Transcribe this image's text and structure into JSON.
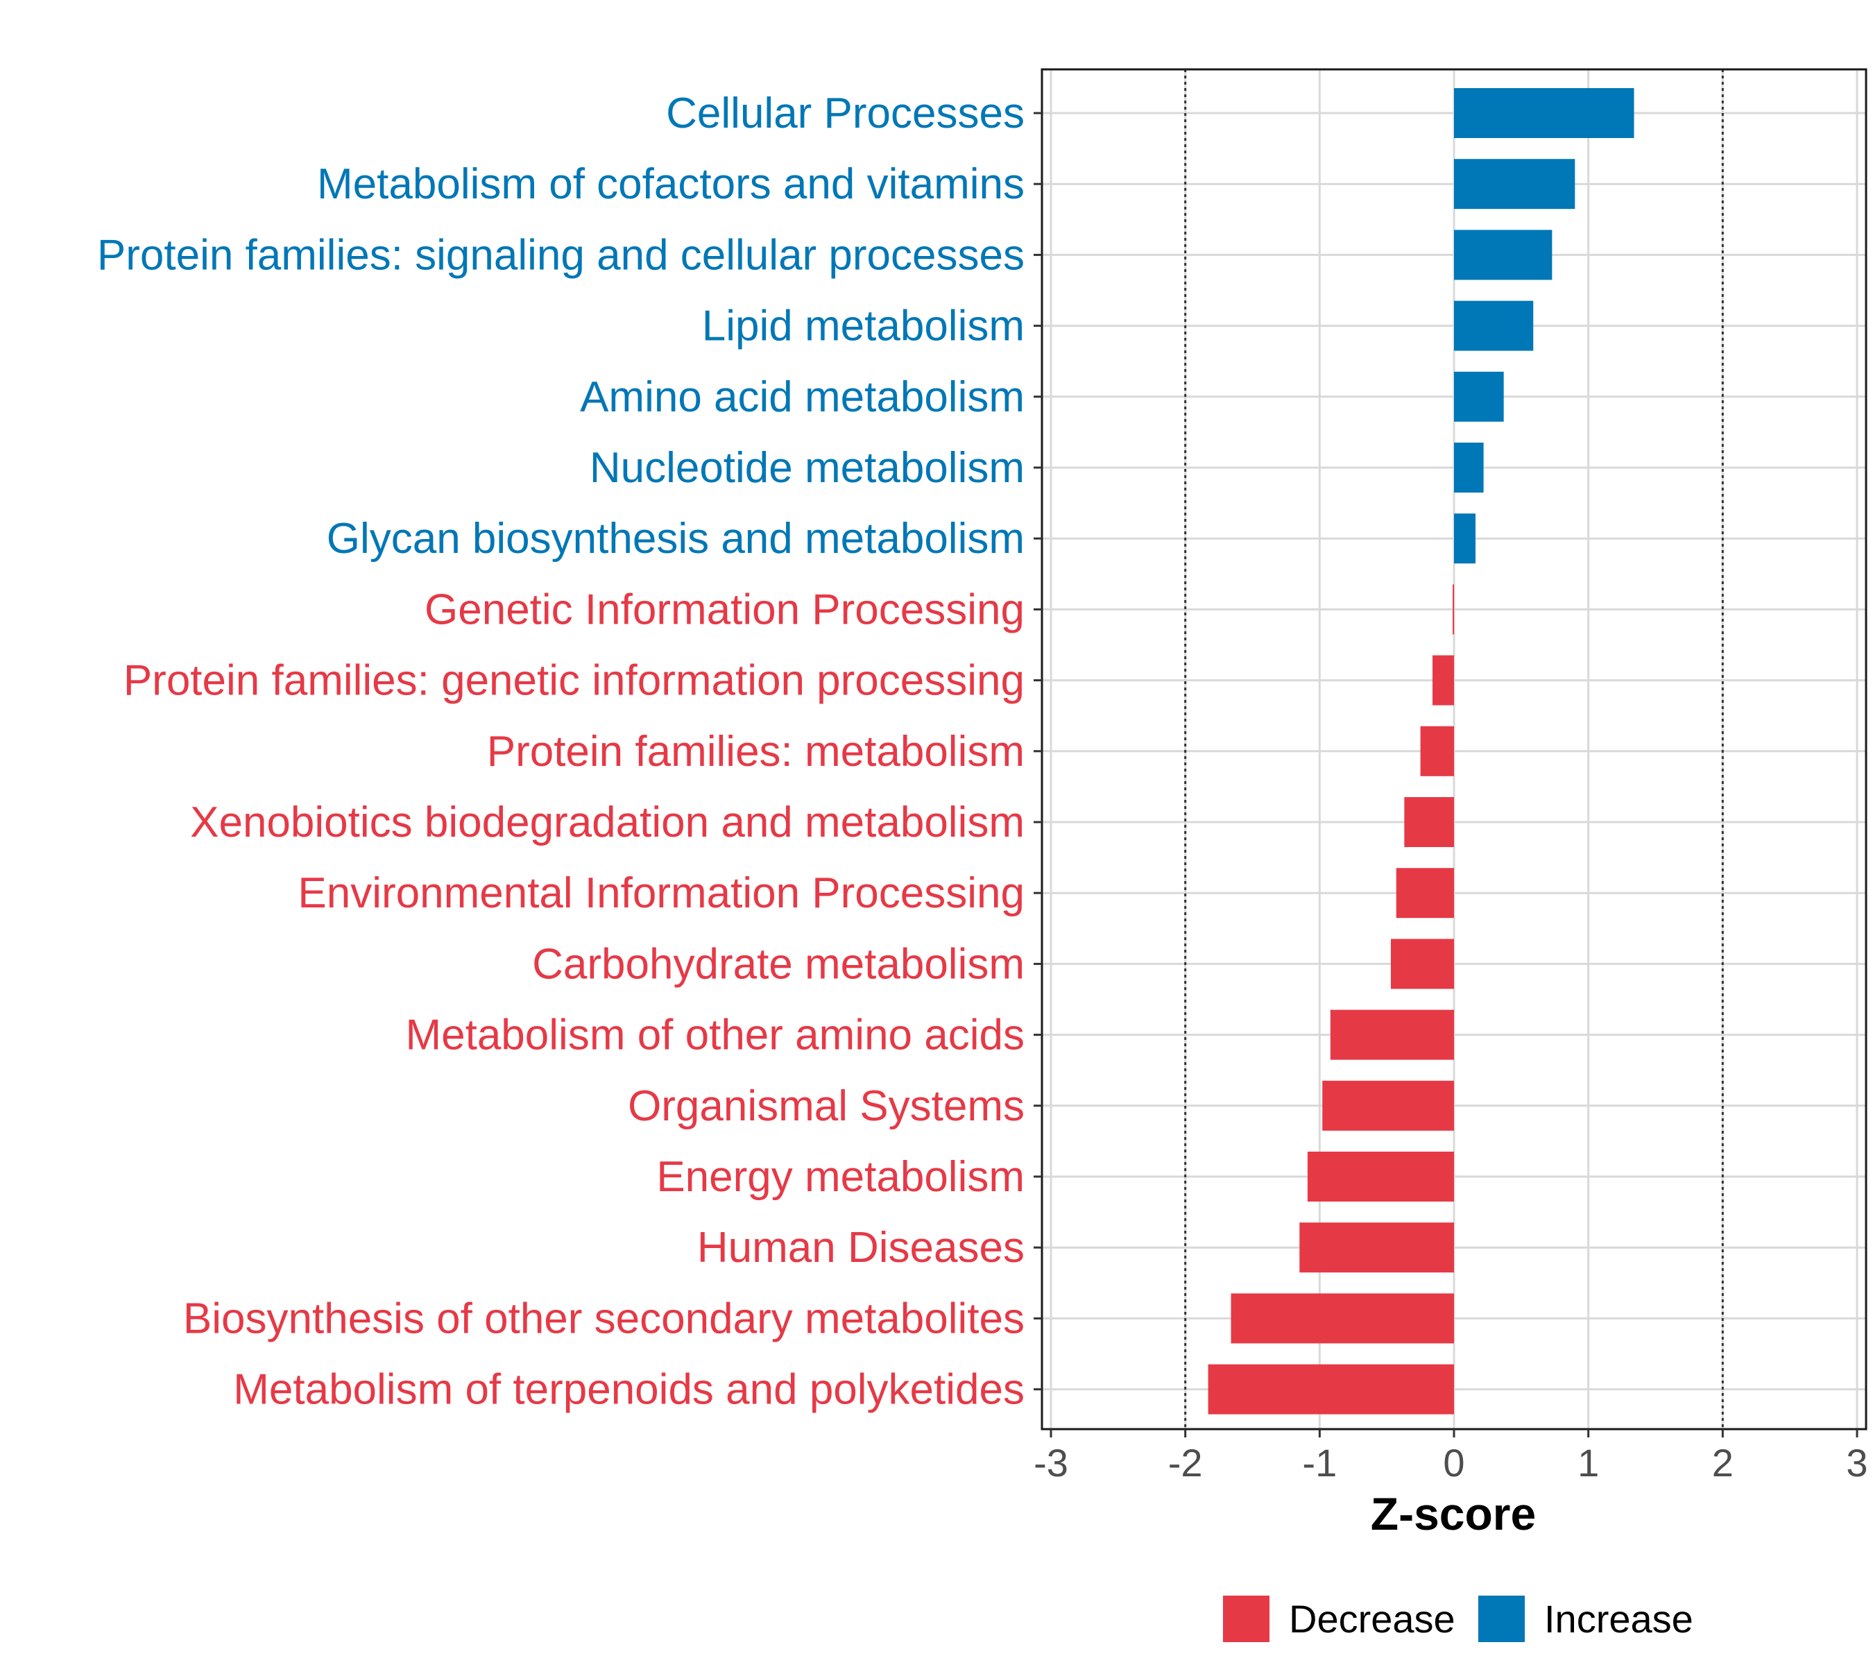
{
  "chart_data": {
    "type": "bar",
    "orientation": "horizontal",
    "title": "",
    "xlabel": "Z-score",
    "ylabel": "",
    "xlim": [
      -3,
      3
    ],
    "xticks": [
      -3,
      -2,
      -1,
      0,
      1,
      2,
      3
    ],
    "reference_lines": [
      -2,
      2
    ],
    "grid": true,
    "legend_position": "bottom",
    "colors": {
      "Decrease": "#e63946",
      "Increase": "#0077b6"
    },
    "categories": [
      "Cellular Processes",
      "Metabolism of cofactors and vitamins",
      "Protein families: signaling and cellular processes",
      "Lipid metabolism",
      "Amino acid metabolism",
      "Nucleotide metabolism",
      "Glycan biosynthesis and metabolism",
      "Genetic Information Processing",
      "Protein families: genetic information processing",
      "Protein families: metabolism",
      "Xenobiotics biodegradation and metabolism",
      "Environmental Information Processing",
      "Carbohydrate metabolism",
      "Metabolism of other amino acids",
      "Organismal Systems",
      "Energy metabolism",
      "Human Diseases",
      "Biosynthesis of other secondary metabolites",
      "Metabolism of terpenoids and polyketides"
    ],
    "values": [
      1.34,
      0.9,
      0.73,
      0.59,
      0.37,
      0.22,
      0.16,
      -0.01,
      -0.16,
      -0.25,
      -0.37,
      -0.43,
      -0.47,
      -0.92,
      -0.98,
      -1.09,
      -1.15,
      -1.66,
      -1.83
    ],
    "groups": [
      "Increase",
      "Increase",
      "Increase",
      "Increase",
      "Increase",
      "Increase",
      "Increase",
      "Decrease",
      "Decrease",
      "Decrease",
      "Decrease",
      "Decrease",
      "Decrease",
      "Decrease",
      "Decrease",
      "Decrease",
      "Decrease",
      "Decrease",
      "Decrease"
    ],
    "legend": [
      {
        "name": "Decrease"
      },
      {
        "name": "Increase"
      }
    ]
  }
}
